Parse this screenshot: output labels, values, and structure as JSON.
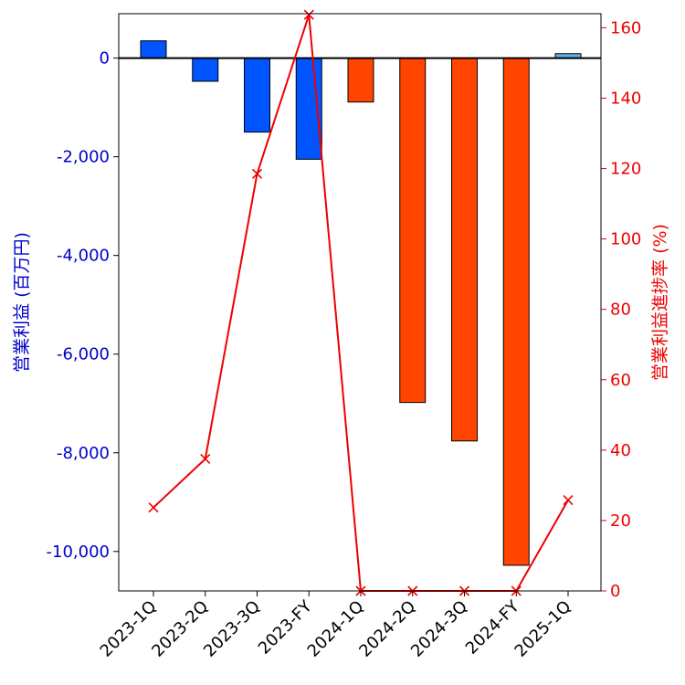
{
  "chart_data": {
    "type": "bar",
    "categories": [
      "2023-1Q",
      "2023-2Q",
      "2023-3Q",
      "2023-FY",
      "2024-1Q",
      "2024-2Q",
      "2024-3Q",
      "2024-FY",
      "2025-1Q"
    ],
    "series": [
      {
        "name": "営業利益 (百万円)",
        "type": "bar",
        "axis": "left",
        "values": [
          350,
          -470,
          -1500,
          -2050,
          -890,
          -6980,
          -7760,
          -10280,
          90
        ],
        "colors": [
          "#0055FF",
          "#0055FF",
          "#0055FF",
          "#0055FF",
          "#FF4500",
          "#FF4500",
          "#FF4500",
          "#FF4500",
          "#5BB4E5"
        ]
      },
      {
        "name": "営業利益進捗率 (%)",
        "type": "line",
        "axis": "right",
        "marker": "x",
        "color": "#EE0000",
        "values": [
          23.7,
          37.5,
          118.5,
          163.7,
          0,
          0,
          0,
          0,
          25.8
        ]
      }
    ],
    "ylabel": "営業利益 (百万円)",
    "ylabel_right": "営業利益進捗率 (%)",
    "ylim": [
      -10800,
      900
    ],
    "ylim_right": [
      0,
      164
    ],
    "yticks": [
      0,
      -2000,
      -4000,
      -6000,
      -8000,
      -10000
    ],
    "yticks_right": [
      0,
      20,
      40,
      60,
      80,
      100,
      120,
      140,
      160
    ],
    "colors": {
      "left_axis": "#0000CC",
      "right_axis": "#EE0000",
      "bar_edge": "#000000"
    }
  }
}
